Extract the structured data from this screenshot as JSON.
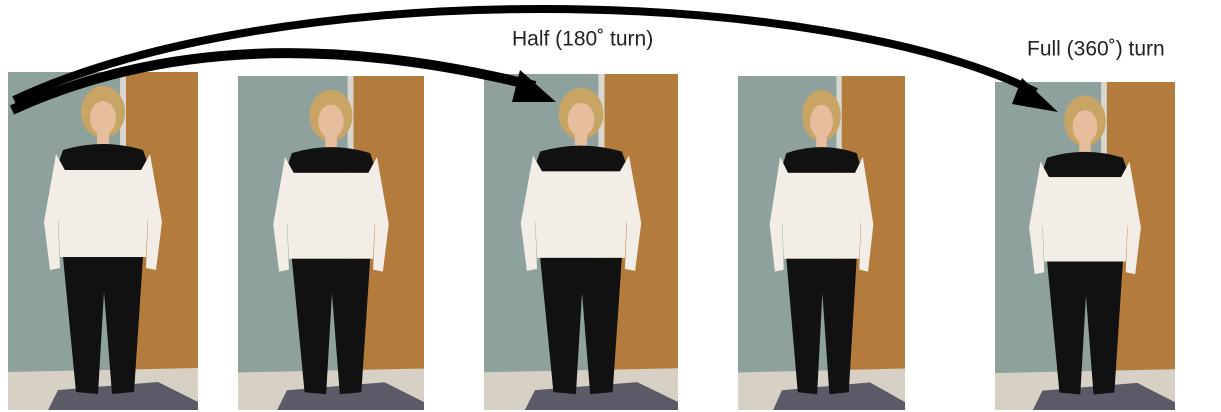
{
  "labels": {
    "half": "Half (180˚ turn)",
    "full": "Full (360˚) turn"
  }
}
